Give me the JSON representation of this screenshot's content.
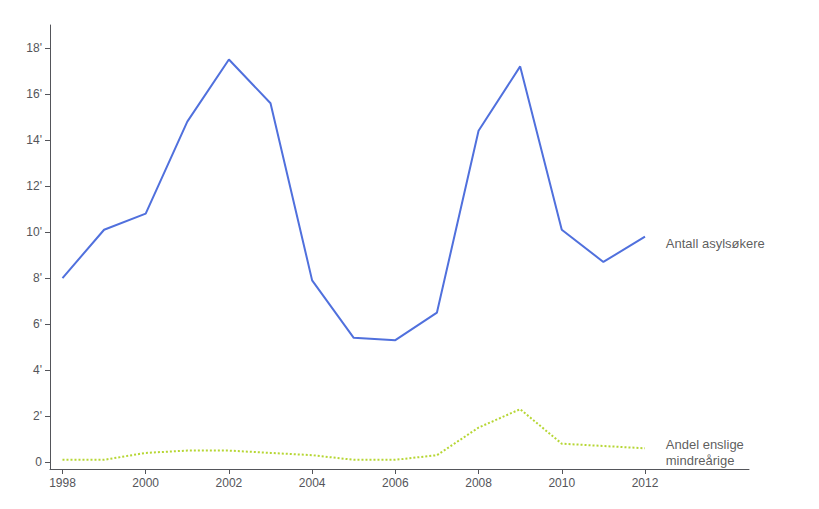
{
  "chart_data": {
    "type": "line",
    "x": [
      1998,
      1999,
      2000,
      2001,
      2002,
      2003,
      2004,
      2005,
      2006,
      2007,
      2008,
      2009,
      2010,
      2011,
      2012
    ],
    "series": [
      {
        "values": [
          8.0,
          10.1,
          10.8,
          14.8,
          17.5,
          15.6,
          7.9,
          5.4,
          5.3,
          6.5,
          14.4,
          17.2,
          10.1,
          8.7,
          9.8
        ],
        "line_style": "solid"
      },
      {
        "values": [
          0.1,
          0.1,
          0.4,
          0.5,
          0.5,
          0.4,
          0.3,
          0.1,
          0.1,
          0.3,
          1.5,
          2.3,
          0.8,
          0.7,
          0.6
        ],
        "line_style": "dotted"
      }
    ],
    "xlim": [
      1997.7,
      2014.5
    ],
    "xticks": [
      1998,
      2000,
      2002,
      2004,
      2006,
      2008,
      2010,
      2012
    ],
    "ylim": [
      -0.3,
      19
    ],
    "yticks": [
      0,
      {
        "value": 2,
        "label": "2'"
      },
      {
        "value": 4,
        "label": "4'"
      },
      {
        "value": 6,
        "label": "6'"
      },
      {
        "value": 8,
        "label": "8'"
      },
      {
        "value": 10,
        "label": "10'"
      },
      {
        "value": 12,
        "label": "12'"
      },
      {
        "value": 14,
        "label": "14'"
      },
      {
        "value": 16,
        "label": "16'"
      },
      {
        "value": 18,
        "label": "18'"
      }
    ],
    "annotations": [
      {
        "text": "Antall asylsøkere",
        "x": 2012.5,
        "y": 9.5
      },
      {
        "text": "Andel enslige\nmindreårige",
        "x": 2012.5,
        "y": 0.4
      }
    ],
    "grid": false
  }
}
